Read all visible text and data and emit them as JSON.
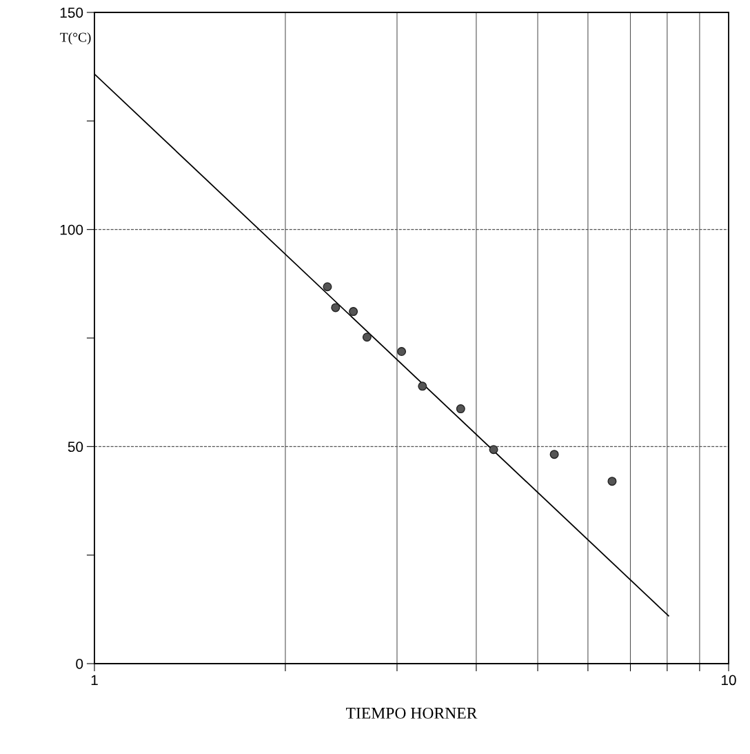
{
  "chart_data": {
    "type": "scatter",
    "xlabel": "TIEMPO HORNER",
    "ylabel": "T(°C)",
    "log": "x",
    "xlim": [
      1,
      10
    ],
    "ylim": [
      0,
      150
    ],
    "xticks": [
      1,
      {
        "value": 2,
        "label": null
      },
      {
        "value": 3,
        "label": null
      },
      {
        "value": 4,
        "label": null
      },
      {
        "value": 5,
        "label": null
      },
      {
        "value": 6,
        "label": null
      },
      {
        "value": 7,
        "label": null
      },
      {
        "value": 8,
        "label": null
      },
      {
        "value": 9,
        "label": null
      },
      10
    ],
    "yticks": [
      0,
      {
        "value": 25,
        "label": null
      },
      50,
      {
        "value": 75,
        "label": null
      },
      100,
      {
        "value": 125,
        "label": null
      },
      150
    ],
    "grid": "x",
    "ref_lines": [
      {
        "axis": "y",
        "value": 50,
        "color": "#555555",
        "line_style": "dashed"
      },
      {
        "axis": "y",
        "value": 100,
        "color": "#555555",
        "line_style": "dashed"
      }
    ],
    "series": [
      {
        "color": "#555555",
        "marker": "circle",
        "x": [
          2.33,
          2.4,
          2.56,
          2.69,
          3.05,
          3.29,
          3.78,
          4.26,
          5.31,
          6.55
        ],
        "values": [
          86.8,
          82.0,
          81.1,
          75.2,
          71.9,
          63.9,
          58.7,
          49.3,
          48.2,
          42.0
        ]
      },
      {
        "type": "line",
        "marker": "none",
        "color": "#000000",
        "x": [
          1,
          8.04
        ],
        "values": [
          135.8,
          11.0
        ]
      }
    ]
  }
}
